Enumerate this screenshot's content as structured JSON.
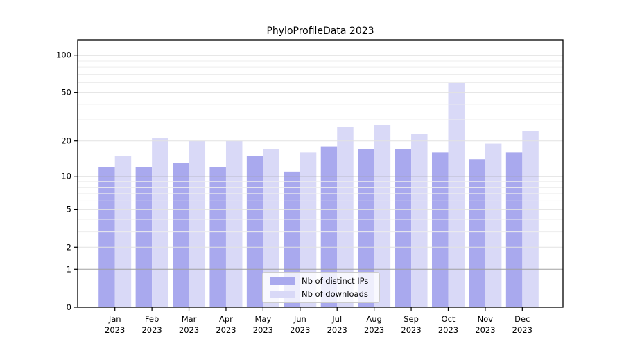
{
  "chart_data": {
    "type": "bar",
    "title": "PhyloProfileData 2023",
    "categories": [
      "Jan",
      "Feb",
      "Mar",
      "Apr",
      "May",
      "Jun",
      "Jul",
      "Aug",
      "Sep",
      "Oct",
      "Nov",
      "Dec"
    ],
    "x_year_label": "2023",
    "series": [
      {
        "name": "Nb of distinct IPs",
        "color": "#a9a9ee",
        "values": [
          12,
          12,
          13,
          12,
          15,
          11,
          18,
          17,
          17,
          16,
          14,
          16
        ]
      },
      {
        "name": "Nb of downloads",
        "color": "#d9d9f7",
        "values": [
          15,
          21,
          20,
          20,
          17,
          16,
          26,
          27,
          23,
          60,
          19,
          24
        ]
      }
    ],
    "y_ticks": [
      0,
      1,
      2,
      5,
      10,
      20,
      50,
      100
    ],
    "minor_gridlines": [
      3,
      4,
      6,
      7,
      8,
      9,
      30,
      40,
      60,
      70,
      80,
      90
    ],
    "decade_ticks": [
      1,
      10,
      100
    ],
    "y_scale": "log1p",
    "ylim": [
      0,
      132
    ],
    "grid": true,
    "legend_position": "inside-bottom-center"
  },
  "colors": {
    "decade_gridline": "#a0a0a0",
    "major_gridline": "#e2e2e2",
    "minor_gridline": "#ededed",
    "axis": "#000000",
    "text": "#000000"
  }
}
